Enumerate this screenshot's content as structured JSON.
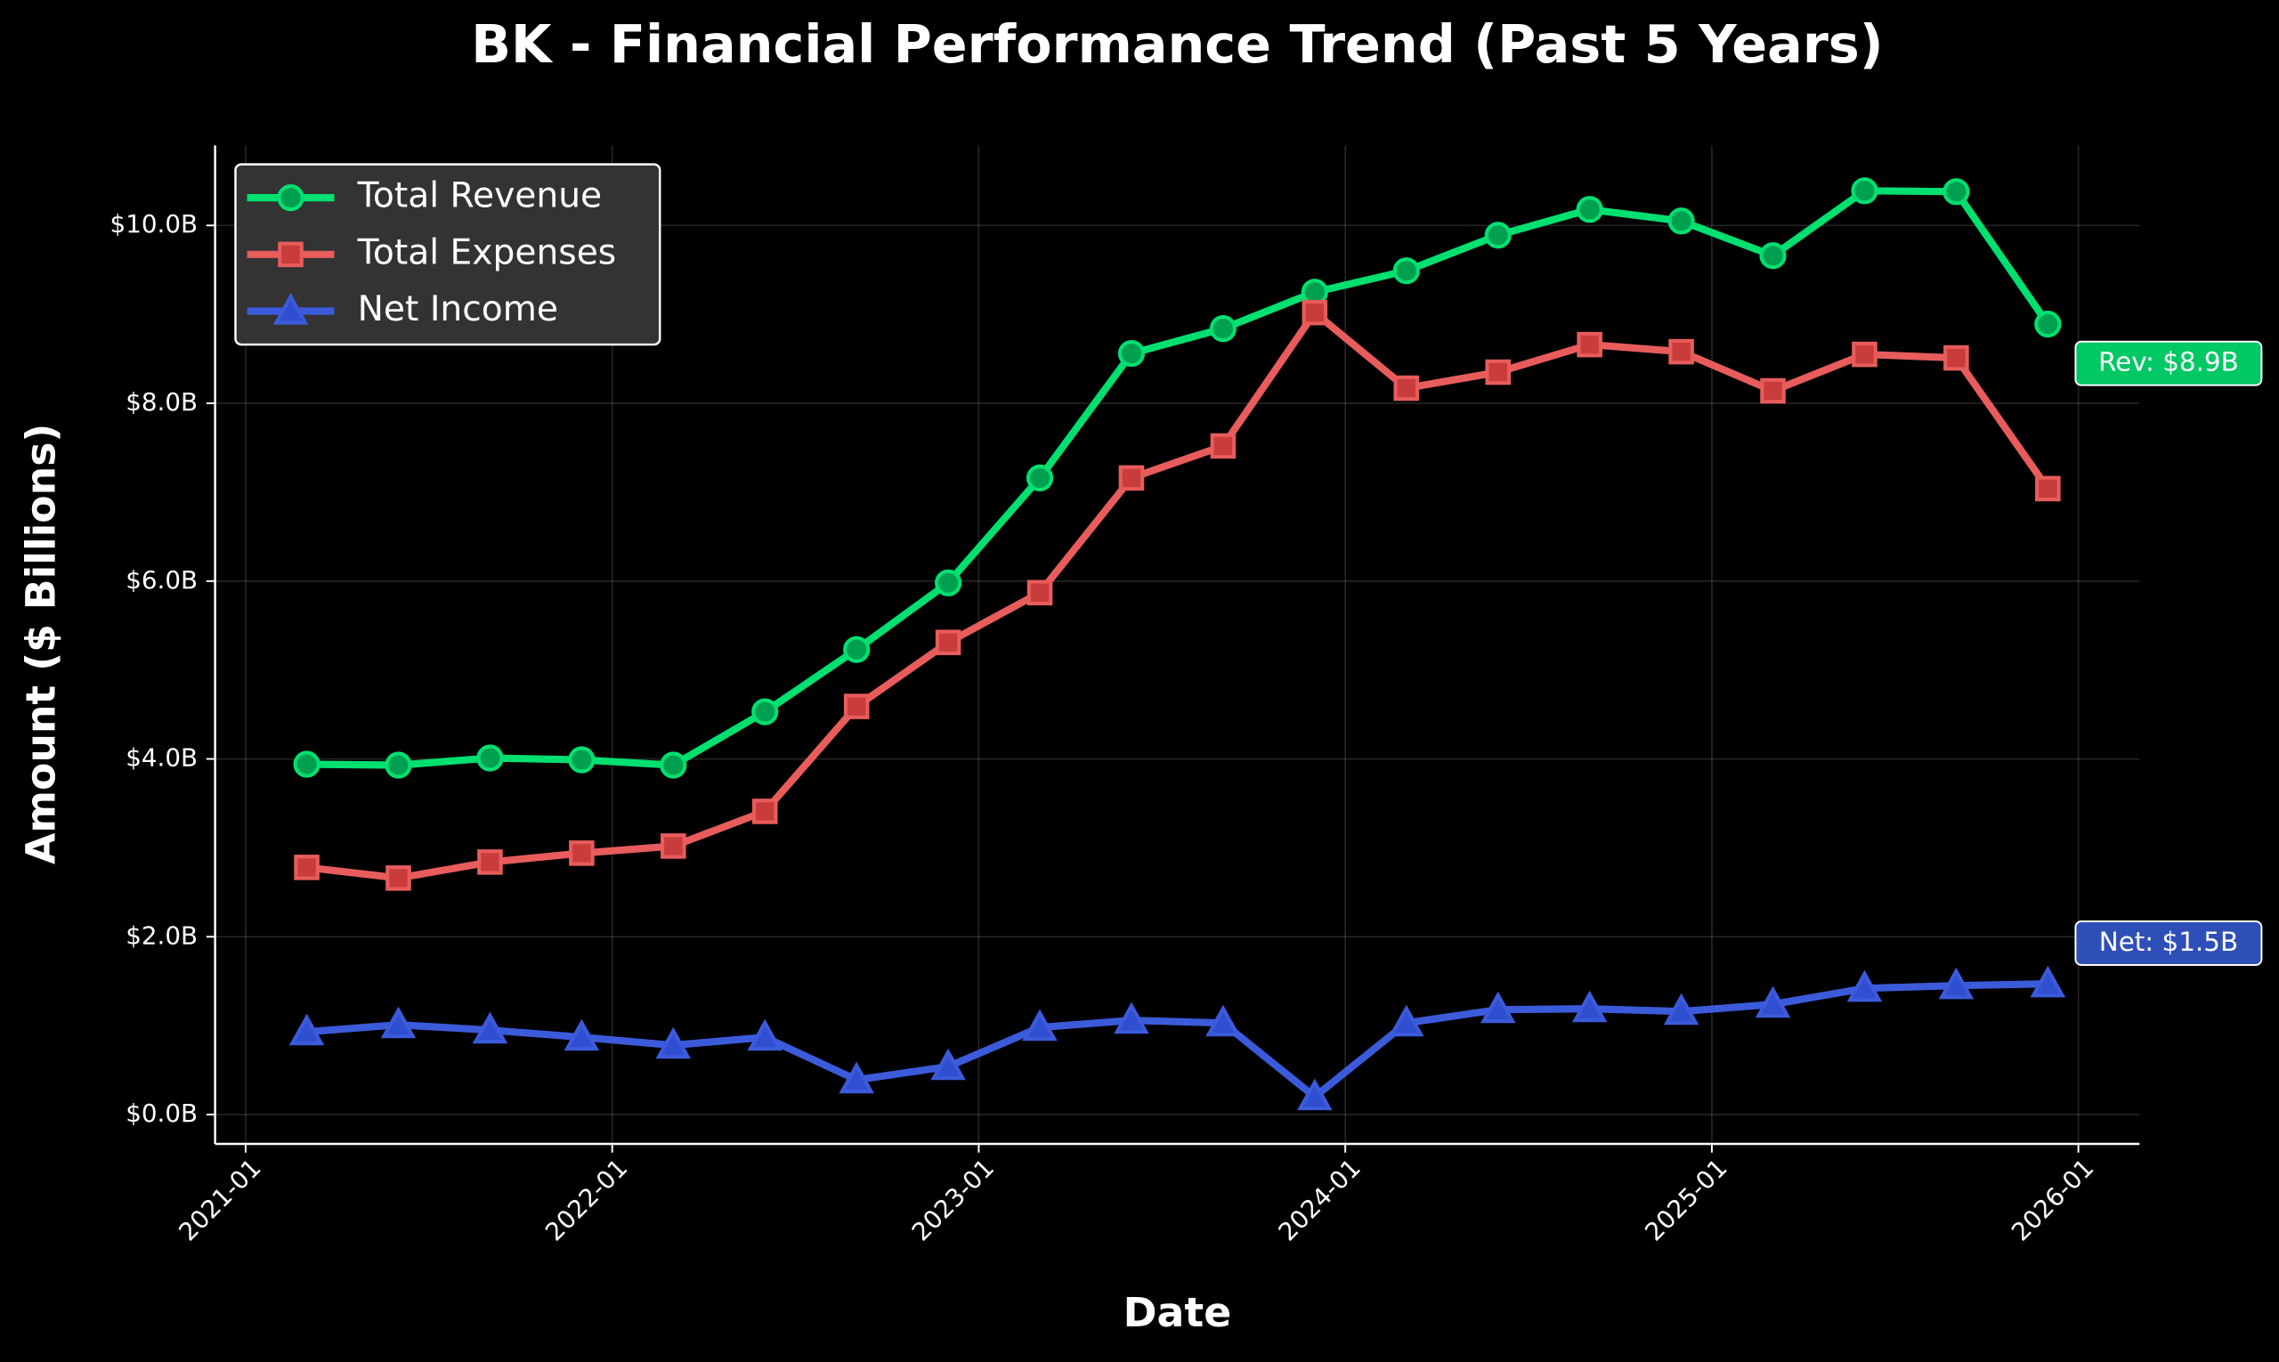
{
  "chart_data": {
    "type": "line",
    "title": "BK - Financial Performance Trend (Past 5 Years)",
    "x_label": "Date",
    "y_label": "Amount ($ Billions)",
    "x": [
      "2021-03",
      "2021-06",
      "2021-09",
      "2021-12",
      "2022-03",
      "2022-06",
      "2022-09",
      "2022-12",
      "2023-03",
      "2023-06",
      "2023-09",
      "2023-12",
      "2024-03",
      "2024-06",
      "2024-09",
      "2024-12",
      "2025-03",
      "2025-06",
      "2025-09",
      "2025-12"
    ],
    "series": [
      {
        "name": "Total Revenue",
        "color": "#00e070",
        "marker": "circle",
        "values": [
          3.94,
          3.93,
          4.01,
          3.99,
          3.93,
          4.53,
          5.23,
          5.98,
          7.16,
          8.56,
          8.84,
          9.25,
          9.49,
          9.89,
          10.18,
          10.05,
          9.66,
          10.39,
          10.38,
          8.89
        ]
      },
      {
        "name": "Total Expenses",
        "color": "#e85c5c",
        "marker": "square",
        "values": [
          2.78,
          2.66,
          2.84,
          2.94,
          3.02,
          3.41,
          4.59,
          5.31,
          5.87,
          7.16,
          7.52,
          9.02,
          8.17,
          8.35,
          8.66,
          8.58,
          8.14,
          8.55,
          8.51,
          7.04
        ]
      },
      {
        "name": "Net Income",
        "color": "#3b5bdb",
        "marker": "triangle",
        "values": [
          0.93,
          1.01,
          0.95,
          0.87,
          0.78,
          0.87,
          0.39,
          0.54,
          0.98,
          1.06,
          1.03,
          0.2,
          1.03,
          1.18,
          1.19,
          1.16,
          1.24,
          1.42,
          1.45,
          1.47
        ]
      }
    ],
    "xlim": [
      "2020-12",
      "2026-03"
    ],
    "xticks": [
      "2021-01",
      "2022-01",
      "2023-01",
      "2024-01",
      "2025-01",
      "2026-01"
    ],
    "ylim": [
      -0.33,
      10.9
    ],
    "yticks": [
      {
        "value": 0,
        "label": "$0.0B"
      },
      {
        "value": 2,
        "label": "$2.0B"
      },
      {
        "value": 4,
        "label": "$4.0B"
      },
      {
        "value": 6,
        "label": "$6.0B"
      },
      {
        "value": 8,
        "label": "$8.0B"
      },
      {
        "value": 10,
        "label": "$10.0B"
      }
    ],
    "grid": true,
    "legend": "upper left",
    "annotations": [
      {
        "text": "Rev: $8.9B",
        "color": "#00c864"
      },
      {
        "text": "Net: $1.5B",
        "color": "#2f4fb8"
      }
    ]
  }
}
